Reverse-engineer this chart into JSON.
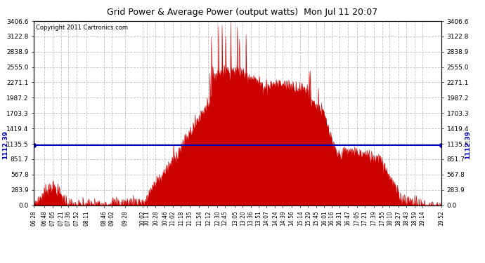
{
  "title": "Grid Power & Average Power (output watts)  Mon Jul 11 20:07",
  "copyright": "Copyright 2011 Cartronics.com",
  "avg_line_value": 1112.39,
  "avg_label": "1112.39",
  "ymax": 3406.6,
  "yticks": [
    0.0,
    283.9,
    567.8,
    851.7,
    1135.5,
    1419.4,
    1703.3,
    1987.2,
    2271.1,
    2555.0,
    2838.9,
    3122.8,
    3406.6
  ],
  "background_color": "#ffffff",
  "plot_bg_color": "#ffffff",
  "fill_color": "#cc0000",
  "avg_line_color": "#0000bb",
  "grid_color": "#bbbbbb",
  "title_color": "#000000",
  "x_labels": [
    "06:28",
    "06:48",
    "07:05",
    "07:21",
    "07:36",
    "07:52",
    "08:11",
    "08:46",
    "09:02",
    "09:28",
    "10:02",
    "10:11",
    "10:28",
    "10:46",
    "11:02",
    "11:18",
    "11:35",
    "11:54",
    "12:12",
    "12:30",
    "12:45",
    "13:05",
    "13:20",
    "13:36",
    "13:51",
    "14:07",
    "14:24",
    "14:39",
    "14:56",
    "15:14",
    "15:29",
    "15:45",
    "16:01",
    "16:16",
    "16:31",
    "16:47",
    "17:05",
    "17:21",
    "17:39",
    "17:55",
    "18:10",
    "18:27",
    "18:43",
    "18:59",
    "19:14",
    "19:52"
  ]
}
